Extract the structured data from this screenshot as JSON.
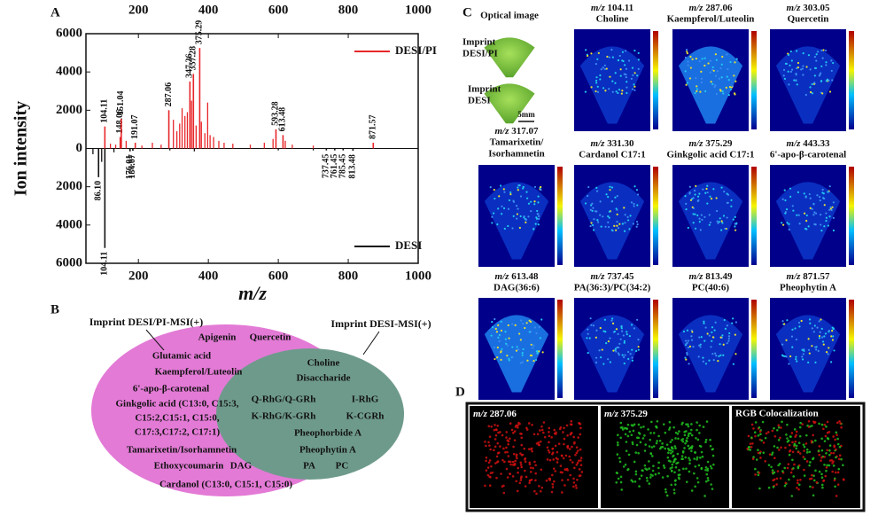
{
  "chart_data": {
    "type": "stem",
    "panel_label": "A",
    "ylabel": "Ion intensity",
    "xlabel": "m/z",
    "xlim": [
      50,
      1000
    ],
    "xticks": [
      200,
      400,
      600,
      800,
      1000
    ],
    "ylim": [
      -6000,
      6000
    ],
    "yticks": [
      {
        "value": -6000,
        "label": "6000"
      },
      {
        "value": -4000,
        "label": "4000"
      },
      {
        "value": -2000,
        "label": "2000"
      },
      0,
      2000,
      4000,
      6000
    ],
    "series": [
      {
        "name": "DESI/PI",
        "color": "#e8262a",
        "x": [
          104.11,
          148.06,
          151.04,
          191.07,
          287.06,
          347.26,
          357.28,
          375.29,
          593.28,
          613.48,
          871.57
        ],
        "x_labels": [
          "104.11",
          "148.06",
          "151.04",
          "191.07",
          "287.06",
          "347.26",
          "357.28",
          "375.29",
          "593.28",
          "613.48",
          "871.57"
        ],
        "values": [
          1150,
          600,
          1550,
          300,
          2000,
          3500,
          3900,
          5250,
          1000,
          700,
          300
        ],
        "minor_x": [
          120,
          135,
          165,
          210,
          240,
          265,
          300,
          310,
          318,
          325,
          333,
          340,
          352,
          365,
          380,
          390,
          398,
          405,
          415,
          430,
          445,
          470,
          520,
          560,
          585,
          620,
          640,
          700
        ],
        "minor_values": [
          250,
          200,
          400,
          150,
          300,
          200,
          1500,
          900,
          1300,
          2100,
          1700,
          1900,
          2500,
          1200,
          1400,
          800,
          2400,
          700,
          600,
          400,
          300,
          250,
          200,
          300,
          500,
          400,
          200,
          150
        ]
      },
      {
        "name": "DESI",
        "color": "#111111",
        "x": [
          86.1,
          104.11,
          176.01,
          184.07,
          737.45,
          761.45,
          785.45,
          813.48
        ],
        "x_labels": [
          "86.10",
          "104.11",
          "176.01",
          "184.07",
          "737.45",
          "761.45",
          "785.45",
          "813.48"
        ],
        "values": [
          -1500,
          -5200,
          -150,
          -120,
          -100,
          -100,
          -100,
          -120
        ],
        "minor_x": [
          70,
          95,
          130,
          290,
          360,
          600,
          700
        ],
        "minor_values": [
          -300,
          -700,
          -200,
          -100,
          -150,
          -100,
          -100
        ]
      }
    ]
  },
  "venn": {
    "panel_label": "B",
    "left_title": "Imprint DESI/PI-MSI(+)",
    "right_title": "Imprint DESI-MSI(+)",
    "left_items": [
      "Apigenin",
      "Quercetin",
      "Glutamic acid",
      "Kaempferol/Luteolin",
      "6'-apo-β-carotenal",
      "Ginkgolic acid (C13:0, C15:3,",
      "C15:2,C15:1, C15:0,",
      "C17:3,C17:2, C17:1)",
      "Tamarixetin/Isorhamnetin",
      "Ethoxycoumarin",
      "DAG",
      "Cardanol (C13:0, C15:1, C15:0)"
    ],
    "shared_items": [
      "Choline",
      "Disaccharide",
      "Q-RhG/Q-GRh",
      "I-RhG",
      "K-RhG/K-GRh",
      "K-CGRh",
      "Pheophorbide A",
      "Pheophytin A",
      "PA",
      "PC"
    ]
  },
  "imaging": {
    "panel_label": "C",
    "mz_prefix": "m/z",
    "optical_title": "Optical image",
    "optical_labels": [
      "Imprint",
      "DESI/PI",
      "Imprint",
      "DESI"
    ],
    "scale_bar": "5mm",
    "maps": [
      {
        "mz": "104.11",
        "name": "Choline"
      },
      {
        "mz": "287.06",
        "name": "Kaempferol/Luteolin"
      },
      {
        "mz": "303.05",
        "name": "Quercetin"
      },
      {
        "mz": "317.07",
        "name": "Tamarixetin/",
        "name2": "Isorhamnetin"
      },
      {
        "mz": "331.30",
        "name": "Cardanol C17:1"
      },
      {
        "mz": "375.29",
        "name": "Ginkgolic acid C17:1"
      },
      {
        "mz": "443.33",
        "name": "6'-apo-β-carotenal"
      },
      {
        "mz": "613.48",
        "name": "DAG(36:6)"
      },
      {
        "mz": "737.45",
        "name": "PA(36:3)/PC(34:2)"
      },
      {
        "mz": "813.49",
        "name": "PC(40:6)"
      },
      {
        "mz": "871.57",
        "name": "Pheophytin A"
      }
    ]
  },
  "colocalization": {
    "panel_label": "D",
    "mz_prefix": "m/z",
    "panels": [
      "287.06",
      "375.29"
    ],
    "rgb_title": "RGB Colocalization"
  }
}
